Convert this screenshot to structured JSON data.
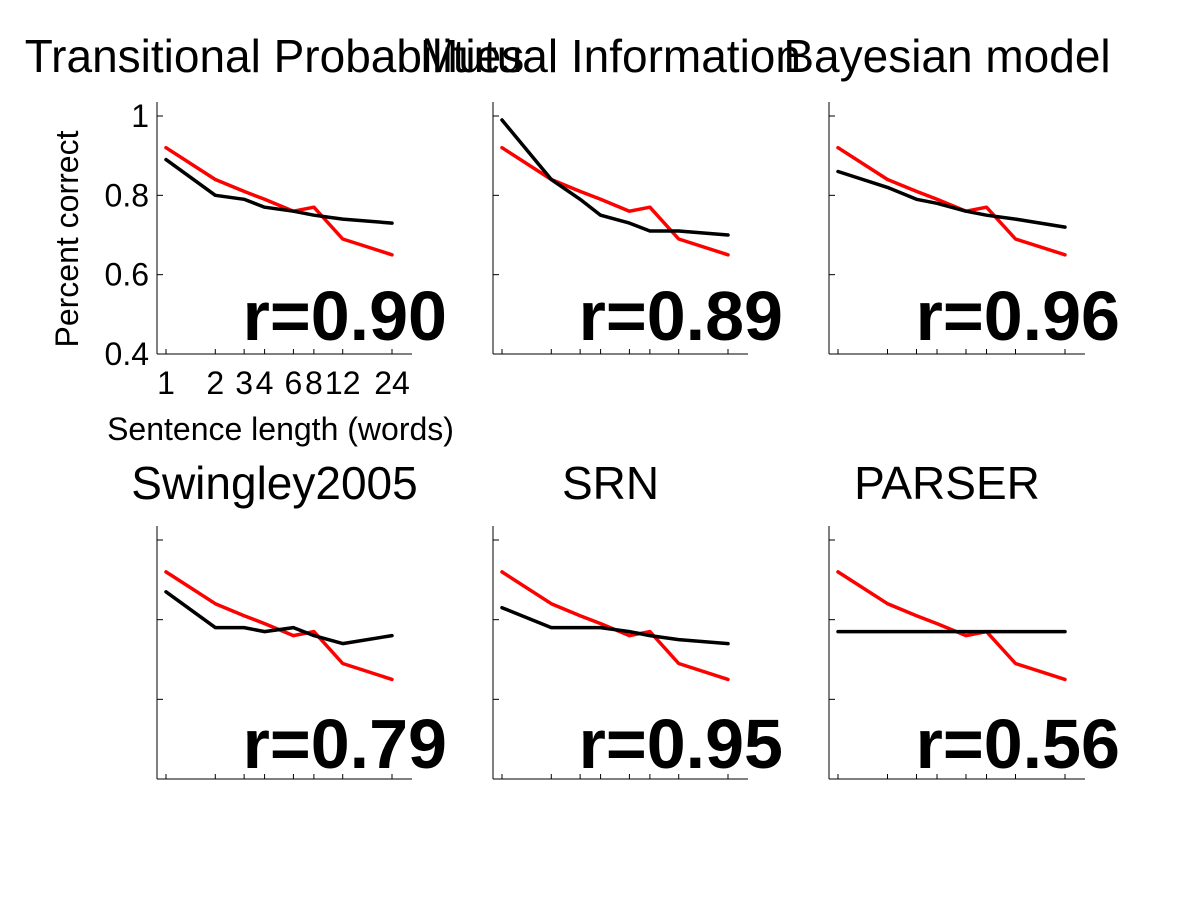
{
  "chart_data": [
    {
      "type": "line",
      "title": "Transitional Probabilities",
      "annotation": "r=0.90",
      "xlabel": "Sentence length (words)",
      "ylabel": "Percent correct",
      "x": [
        1,
        2,
        3,
        4,
        6,
        8,
        12,
        24
      ],
      "xticks": [
        "1",
        "2",
        "3",
        "4",
        "6",
        "8",
        "12",
        "24"
      ],
      "yticks": [
        "0.4",
        "0.6",
        "0.8",
        "1"
      ],
      "ylim": [
        0.4,
        1.0
      ],
      "xscale": "log",
      "series": [
        {
          "color": "#ff0000",
          "values": [
            0.92,
            0.84,
            0.81,
            0.79,
            0.76,
            0.77,
            0.69,
            0.65
          ]
        },
        {
          "color": "#000000",
          "values": [
            0.89,
            0.8,
            0.79,
            0.77,
            0.76,
            0.75,
            0.74,
            0.73
          ]
        }
      ]
    },
    {
      "type": "line",
      "title": "Mutual Information",
      "annotation": "r=0.89",
      "x": [
        1,
        2,
        3,
        4,
        6,
        8,
        12,
        24
      ],
      "ylim": [
        0.4,
        1.0
      ],
      "xscale": "log",
      "series": [
        {
          "color": "#ff0000",
          "values": [
            0.92,
            0.84,
            0.81,
            0.79,
            0.76,
            0.77,
            0.69,
            0.65
          ]
        },
        {
          "color": "#000000",
          "values": [
            0.99,
            0.84,
            0.79,
            0.75,
            0.73,
            0.71,
            0.71,
            0.7
          ]
        }
      ]
    },
    {
      "type": "line",
      "title": "Bayesian model",
      "annotation": "r=0.96",
      "x": [
        1,
        2,
        3,
        4,
        6,
        8,
        12,
        24
      ],
      "ylim": [
        0.4,
        1.0
      ],
      "xscale": "log",
      "series": [
        {
          "color": "#ff0000",
          "values": [
            0.92,
            0.84,
            0.81,
            0.79,
            0.76,
            0.77,
            0.69,
            0.65
          ]
        },
        {
          "color": "#000000",
          "values": [
            0.86,
            0.82,
            0.79,
            0.78,
            0.76,
            0.75,
            0.74,
            0.72
          ]
        }
      ]
    },
    {
      "type": "line",
      "title": "Swingley2005",
      "annotation": "r=0.79",
      "x": [
        1,
        2,
        3,
        4,
        6,
        8,
        12,
        24
      ],
      "ylim": [
        0.4,
        1.0
      ],
      "xscale": "log",
      "series": [
        {
          "color": "#ff0000",
          "values": [
            0.92,
            0.84,
            0.81,
            0.79,
            0.76,
            0.77,
            0.69,
            0.65
          ]
        },
        {
          "color": "#000000",
          "values": [
            0.87,
            0.78,
            0.78,
            0.77,
            0.78,
            0.76,
            0.74,
            0.76
          ]
        }
      ]
    },
    {
      "type": "line",
      "title": "SRN",
      "annotation": "r=0.95",
      "x": [
        1,
        2,
        3,
        4,
        6,
        8,
        12,
        24
      ],
      "ylim": [
        0.4,
        1.0
      ],
      "xscale": "log",
      "series": [
        {
          "color": "#ff0000",
          "values": [
            0.92,
            0.84,
            0.81,
            0.79,
            0.76,
            0.77,
            0.69,
            0.65
          ]
        },
        {
          "color": "#000000",
          "values": [
            0.83,
            0.78,
            0.78,
            0.78,
            0.77,
            0.76,
            0.75,
            0.74
          ]
        }
      ]
    },
    {
      "type": "line",
      "title": "PARSER",
      "annotation": "r=0.56",
      "x": [
        1,
        2,
        3,
        4,
        6,
        8,
        12,
        24
      ],
      "ylim": [
        0.4,
        1.0
      ],
      "xscale": "log",
      "series": [
        {
          "color": "#ff0000",
          "values": [
            0.92,
            0.84,
            0.81,
            0.79,
            0.76,
            0.77,
            0.69,
            0.65
          ]
        },
        {
          "color": "#000000",
          "values": [
            0.77,
            0.77,
            0.77,
            0.77,
            0.77,
            0.77,
            0.77,
            0.77
          ]
        }
      ]
    }
  ]
}
